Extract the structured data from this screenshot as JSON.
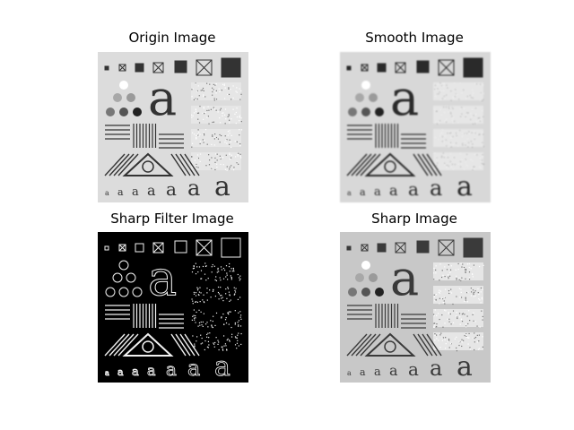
{
  "figure": {
    "panels": [
      {
        "id": "origin",
        "title": "Origin Image",
        "background": "#dcdcdc",
        "ink": "#333333"
      },
      {
        "id": "smooth",
        "title": "Smooth Image",
        "background": "#d8d8d8",
        "ink": "#2a2a2a"
      },
      {
        "id": "sharp_filter",
        "title": "Sharp Filter Image",
        "background": "#000000",
        "ink": "#f2f2f2"
      },
      {
        "id": "sharp",
        "title": "Sharp Image",
        "background": "#c8c8c8",
        "ink": "#3a3a3a"
      }
    ],
    "test_pattern": {
      "big_letter": "a",
      "letter_row": [
        "a",
        "a",
        "a",
        "a",
        "a",
        "a",
        "a"
      ]
    }
  }
}
